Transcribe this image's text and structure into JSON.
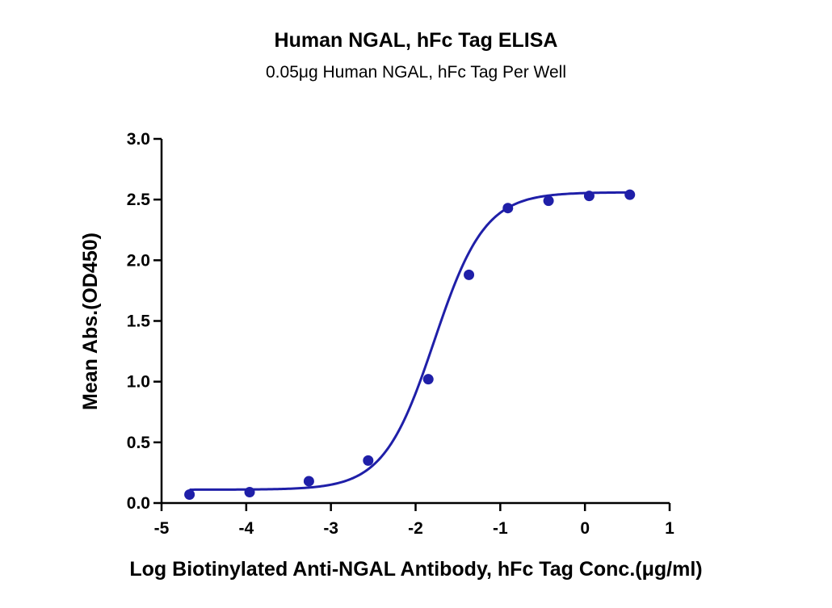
{
  "chart_data": {
    "type": "scatter",
    "title": "Human NGAL, hFc Tag ELISA",
    "subtitle": "0.05μg Human NGAL, hFc Tag Per Well",
    "xlabel": "Log Biotinylated Anti-NGAL Antibody, hFc Tag Conc.(μg/ml)",
    "ylabel": "Mean Abs.(OD450)",
    "xlim": [
      -5,
      1
    ],
    "ylim": [
      0,
      3.0
    ],
    "x_ticks": [
      "-5",
      "-4",
      "-3",
      "-2",
      "-1",
      "0",
      "1"
    ],
    "y_ticks": [
      "0.0",
      "0.5",
      "1.0",
      "1.5",
      "2.0",
      "2.5",
      "3.0"
    ],
    "grid": false,
    "color": "#1f1fa8",
    "series": [
      {
        "x": [
          -4.67,
          -3.96,
          -3.26,
          -2.56,
          -1.85,
          -1.37,
          -0.91,
          -0.43,
          0.05,
          0.53
        ],
        "y": [
          0.07,
          0.09,
          0.18,
          0.35,
          1.02,
          1.88,
          2.43,
          2.49,
          2.53,
          2.54
        ]
      }
    ],
    "fit": {
      "model": "4PL",
      "bottom": 0.11,
      "top": 2.56,
      "log_ec50": -1.78,
      "hill_slope": 1.45
    }
  }
}
